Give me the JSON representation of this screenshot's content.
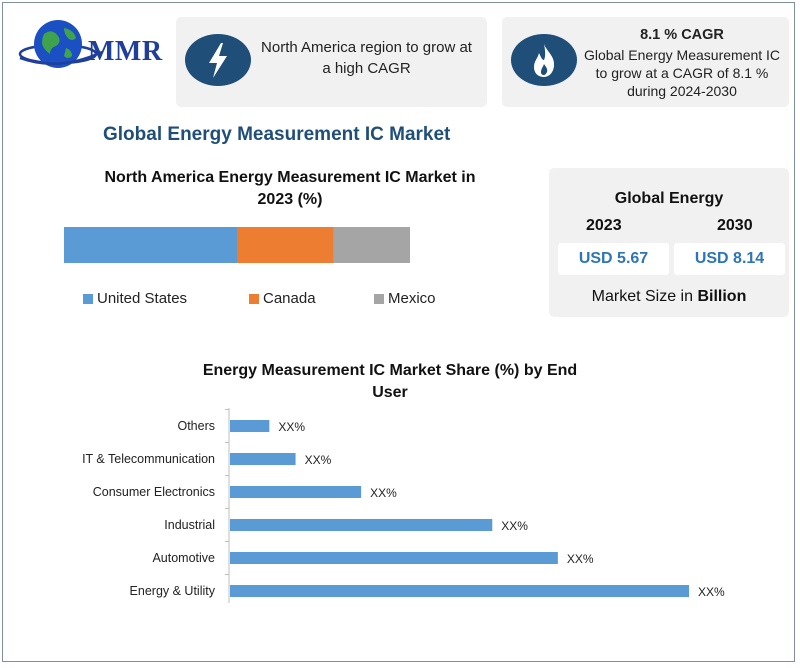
{
  "brand": {
    "logo_text": "MMR"
  },
  "colors": {
    "accent": "#1f4e79",
    "value_text": "#2e75b6",
    "bar": "#5b9bd5"
  },
  "info_cards": [
    {
      "icon": "lightning-bolt-icon",
      "text": "North America region to grow at a high CAGR"
    },
    {
      "icon": "flame-icon",
      "title": "8.1 % CAGR",
      "text": "Global Energy Measurement IC to grow at a CAGR of 8.1 % during 2024-2030"
    }
  ],
  "main_title": "Global Energy Measurement IC Market",
  "market_size": {
    "title": "Global Energy",
    "years": [
      "2023",
      "2030"
    ],
    "values": [
      "USD 5.67",
      "USD 8.14"
    ],
    "footer_prefix": "Market Size in ",
    "footer_bold": "Billion"
  },
  "chart_data": [
    {
      "type": "bar",
      "orientation": "horizontal-stacked",
      "title": "North America Energy Measurement IC Market in 2023 (%)",
      "categories": [
        "2023"
      ],
      "series": [
        {
          "name": "United States",
          "values": [
            50
          ],
          "color": "#5b9bd5"
        },
        {
          "name": "Canada",
          "values": [
            28
          ],
          "color": "#ed7d31"
        },
        {
          "name": "Mexico",
          "values": [
            22
          ],
          "color": "#a5a5a5"
        }
      ],
      "legend": "bottom",
      "grid": false
    },
    {
      "type": "bar",
      "orientation": "horizontal",
      "title": "Energy Measurement IC Market Share (%) by End User",
      "categories": [
        "Others",
        "IT & Telecommunication",
        "Consumer Electronics",
        "Industrial",
        "Automotive",
        "Energy & Utility"
      ],
      "values": [
        6,
        10,
        20,
        40,
        50,
        70
      ],
      "data_labels": [
        "XX%",
        "XX%",
        "XX%",
        "XX%",
        "XX%",
        "XX%"
      ],
      "xlim": [
        0,
        70
      ],
      "grid": false
    }
  ]
}
